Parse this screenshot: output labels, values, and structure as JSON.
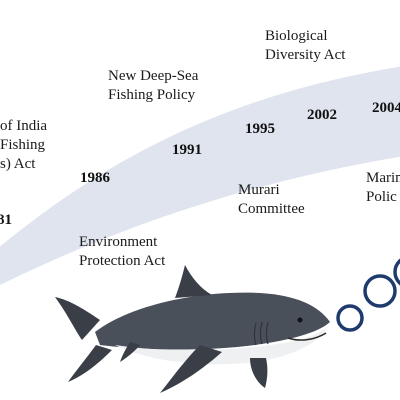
{
  "timeline": {
    "band_color": "#dfe4ef",
    "years": [
      "81",
      "1986",
      "1991",
      "1995",
      "2002",
      "2004"
    ],
    "events": [
      "of India\nFishing\ns) Act",
      "Environment\nProtection Act",
      "New Deep-Sea\nFishing Policy",
      "Murari\nCommittee",
      "Biological\nDiversity Act",
      "Marin\nPolic"
    ]
  },
  "illustration": {
    "animal": "shark",
    "bubble_color": "#1f3b6e"
  }
}
